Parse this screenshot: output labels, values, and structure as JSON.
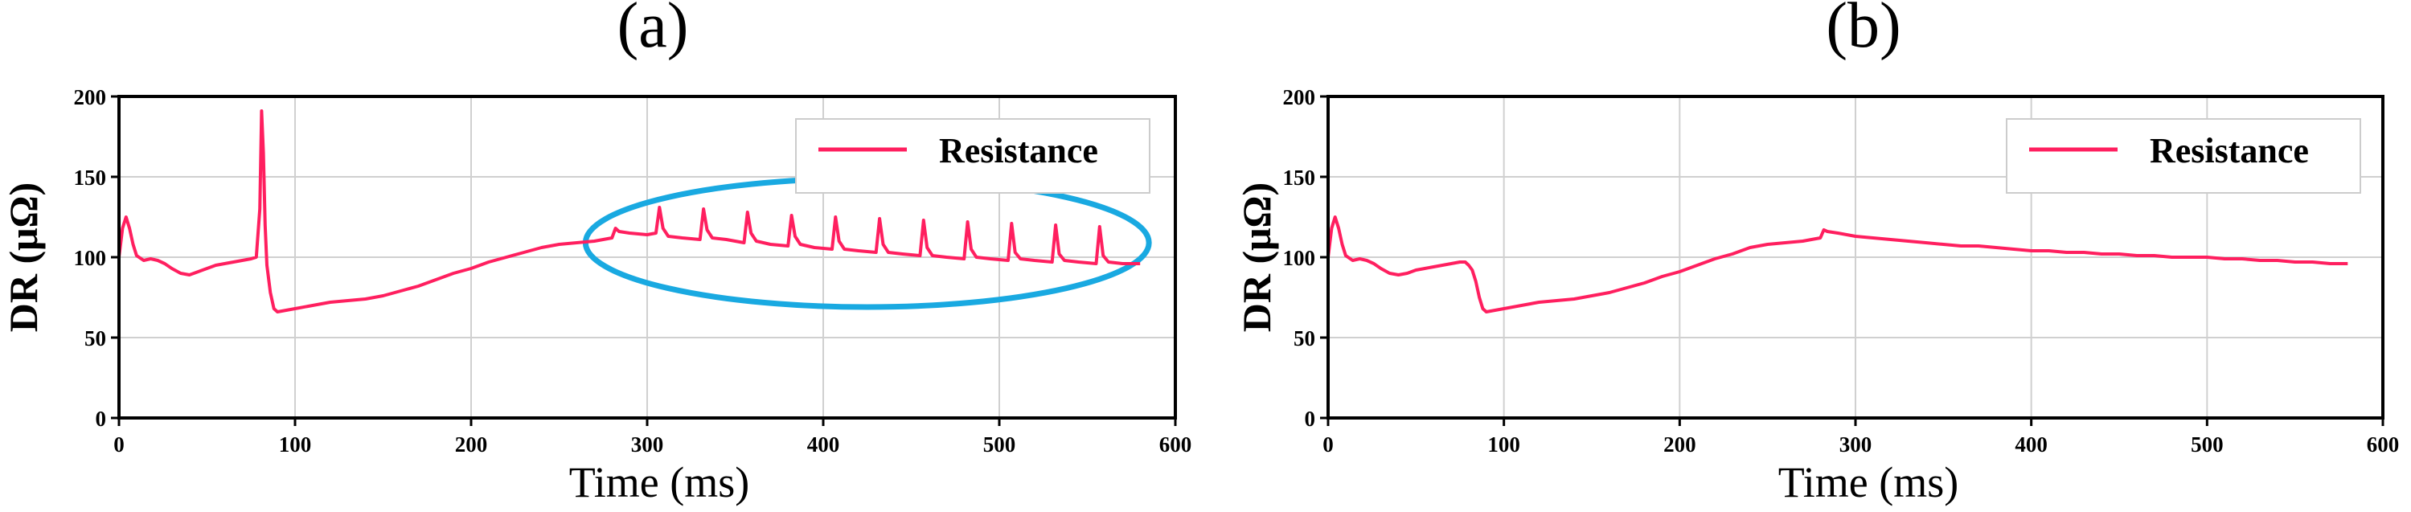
{
  "chart_data": [
    {
      "type": "line",
      "panel": "(a)",
      "title": "",
      "xlabel": "Time (ms)",
      "ylabel": "DR (μΩ)",
      "xlim": [
        0,
        600
      ],
      "ylim": [
        0,
        200
      ],
      "xticks": [
        0,
        100,
        200,
        300,
        400,
        500,
        600
      ],
      "yticks": [
        0,
        50,
        100,
        150,
        200
      ],
      "grid": true,
      "legend": "top-right",
      "colors": {
        "line": "#ff1f5f",
        "annotation": "#19a9e1"
      },
      "series": [
        {
          "name": "Resistance",
          "x": [
            0,
            2,
            4,
            6,
            8,
            10,
            14,
            18,
            22,
            26,
            30,
            35,
            40,
            45,
            50,
            55,
            60,
            65,
            70,
            75,
            78,
            80,
            81,
            82,
            83,
            84,
            86,
            88,
            90,
            95,
            100,
            110,
            120,
            130,
            140,
            150,
            160,
            170,
            180,
            190,
            200,
            210,
            220,
            230,
            240,
            250,
            260,
            270,
            275,
            280,
            282,
            284,
            290,
            300,
            305,
            307,
            309,
            312,
            320,
            330,
            332,
            334,
            337,
            345,
            355,
            357,
            359,
            362,
            370,
            380,
            382,
            384,
            387,
            395,
            405,
            407,
            409,
            412,
            420,
            430,
            432,
            434,
            437,
            445,
            455,
            457,
            459,
            462,
            470,
            480,
            482,
            484,
            487,
            495,
            505,
            507,
            509,
            512,
            520,
            530,
            532,
            534,
            537,
            545,
            555,
            557,
            559,
            562,
            570,
            580
          ],
          "y": [
            100,
            118,
            125,
            118,
            108,
            101,
            98,
            99,
            98,
            96,
            93,
            90,
            89,
            91,
            93,
            95,
            96,
            97,
            98,
            99,
            100,
            130,
            191,
            165,
            120,
            95,
            78,
            68,
            66,
            67,
            68,
            70,
            72,
            73,
            74,
            76,
            79,
            82,
            86,
            90,
            93,
            97,
            100,
            103,
            106,
            108,
            109,
            110,
            111,
            112,
            118,
            116,
            115,
            114,
            115,
            131,
            118,
            113,
            112,
            111,
            130,
            117,
            112,
            111,
            109,
            128,
            115,
            110,
            108,
            107,
            126,
            113,
            108,
            106,
            105,
            125,
            110,
            105,
            104,
            103,
            124,
            108,
            103,
            102,
            101,
            123,
            106,
            101,
            100,
            99,
            122,
            105,
            100,
            99,
            98,
            121,
            103,
            99,
            98,
            97,
            120,
            102,
            98,
            97,
            96,
            119,
            101,
            97,
            96,
            96
          ]
        }
      ],
      "annotation": {
        "shape": "ellipse",
        "center_x": 425,
        "center_y": 109,
        "rx": 160,
        "ry": 40
      }
    },
    {
      "type": "line",
      "panel": "(b)",
      "title": "",
      "xlabel": "Time (ms)",
      "ylabel": "DR (μΩ)",
      "xlim": [
        0,
        600
      ],
      "ylim": [
        0,
        200
      ],
      "xticks": [
        0,
        100,
        200,
        300,
        400,
        500,
        600
      ],
      "yticks": [
        0,
        50,
        100,
        150,
        200
      ],
      "grid": true,
      "legend": "top-right",
      "colors": {
        "line": "#ff1f5f"
      },
      "series": [
        {
          "name": "Resistance",
          "x": [
            0,
            2,
            4,
            6,
            8,
            10,
            14,
            18,
            22,
            26,
            30,
            35,
            40,
            45,
            50,
            55,
            60,
            65,
            70,
            75,
            78,
            80,
            82,
            84,
            86,
            88,
            90,
            95,
            100,
            110,
            120,
            130,
            140,
            150,
            160,
            170,
            180,
            190,
            200,
            210,
            220,
            230,
            240,
            250,
            260,
            270,
            275,
            280,
            282,
            284,
            290,
            300,
            310,
            320,
            330,
            340,
            350,
            360,
            370,
            380,
            390,
            400,
            410,
            420,
            430,
            440,
            450,
            460,
            470,
            480,
            490,
            500,
            510,
            520,
            530,
            540,
            550,
            560,
            570,
            580
          ],
          "y": [
            100,
            118,
            125,
            118,
            108,
            101,
            98,
            99,
            98,
            96,
            93,
            90,
            89,
            90,
            92,
            93,
            94,
            95,
            96,
            97,
            97,
            95,
            92,
            85,
            75,
            68,
            66,
            67,
            68,
            70,
            72,
            73,
            74,
            76,
            78,
            81,
            84,
            88,
            91,
            95,
            99,
            102,
            106,
            108,
            109,
            110,
            111,
            112,
            117,
            116,
            115,
            113,
            112,
            111,
            110,
            109,
            108,
            107,
            107,
            106,
            105,
            104,
            104,
            103,
            103,
            102,
            102,
            101,
            101,
            100,
            100,
            100,
            99,
            99,
            98,
            98,
            97,
            97,
            96,
            96
          ]
        }
      ]
    }
  ]
}
